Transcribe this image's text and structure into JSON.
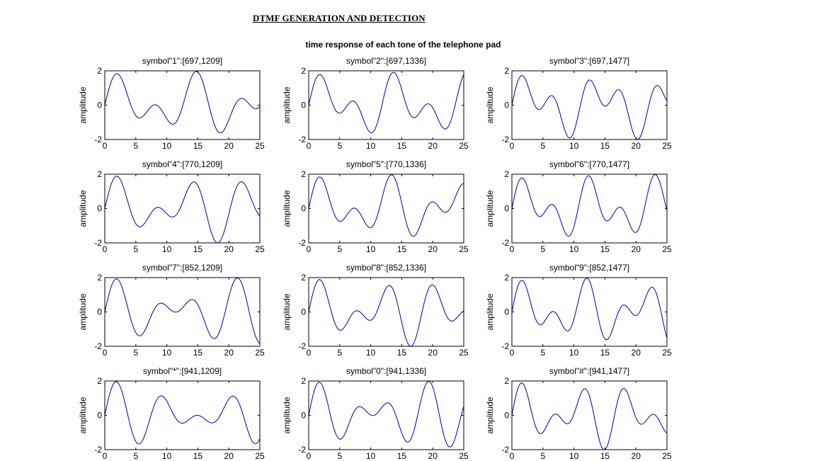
{
  "figure": {
    "title": "DTMF GENERATION AND DETECTION",
    "subtitle": "time response of each tone of the telephone pad"
  },
  "chart_data": [
    {
      "type": "line",
      "title": "symbol\"1\":[697,1209]",
      "ylabel": "amplitude",
      "xlabel": "",
      "f_low": 697,
      "f_high": 1209,
      "xlim": [
        0,
        25
      ],
      "ylim": [
        -2,
        2
      ],
      "xticks": [
        0,
        5,
        10,
        15,
        20,
        25
      ],
      "yticks": [
        -2,
        0,
        2
      ],
      "x": "sample index n = 0..25 (step 0.1)",
      "series": [
        {
          "formula": "sin(2*pi*697*n/8000)+sin(2*pi*1209*n/8000)",
          "color": "#0000a0"
        }
      ]
    },
    {
      "type": "line",
      "title": "symbol\"2\":[697,1336]",
      "ylabel": "amplitude",
      "xlabel": "",
      "f_low": 697,
      "f_high": 1336,
      "xlim": [
        0,
        25
      ],
      "ylim": [
        -2,
        2
      ],
      "xticks": [
        0,
        5,
        10,
        15,
        20,
        25
      ],
      "yticks": [
        -2,
        0,
        2
      ],
      "series": [
        {
          "color": "#0000a0"
        }
      ]
    },
    {
      "type": "line",
      "title": "symbol\"3\":[697,1477]",
      "ylabel": "amplitude",
      "xlabel": "",
      "f_low": 697,
      "f_high": 1477,
      "xlim": [
        0,
        25
      ],
      "ylim": [
        -2,
        2
      ],
      "xticks": [
        0,
        5,
        10,
        15,
        20,
        25
      ],
      "yticks": [
        -2,
        0,
        2
      ],
      "series": [
        {
          "color": "#0000a0"
        }
      ]
    },
    {
      "type": "line",
      "title": "symbol\"4\":[770,1209]",
      "ylabel": "amplitude",
      "xlabel": "",
      "f_low": 770,
      "f_high": 1209,
      "xlim": [
        0,
        25
      ],
      "ylim": [
        -2,
        2
      ],
      "xticks": [
        0,
        5,
        10,
        15,
        20,
        25
      ],
      "yticks": [
        -2,
        0,
        2
      ],
      "series": [
        {
          "color": "#0000a0"
        }
      ]
    },
    {
      "type": "line",
      "title": "symbol\"5\":[770,1336]",
      "ylabel": "amplitude",
      "xlabel": "",
      "f_low": 770,
      "f_high": 1336,
      "xlim": [
        0,
        25
      ],
      "ylim": [
        -2,
        2
      ],
      "xticks": [
        0,
        5,
        10,
        15,
        20,
        25
      ],
      "yticks": [
        -2,
        0,
        2
      ],
      "series": [
        {
          "color": "#0000a0"
        }
      ]
    },
    {
      "type": "line",
      "title": "symbol\"6\":[770,1477]",
      "ylabel": "amplitude",
      "xlabel": "",
      "f_low": 770,
      "f_high": 1477,
      "xlim": [
        0,
        25
      ],
      "ylim": [
        -2,
        2
      ],
      "xticks": [
        0,
        5,
        10,
        15,
        20,
        25
      ],
      "yticks": [
        -2,
        0,
        2
      ],
      "series": [
        {
          "color": "#0000a0"
        }
      ]
    },
    {
      "type": "line",
      "title": "symbol\"7\":[852,1209]",
      "ylabel": "amplitude",
      "xlabel": "",
      "f_low": 852,
      "f_high": 1209,
      "xlim": [
        0,
        25
      ],
      "ylim": [
        -2,
        2
      ],
      "xticks": [
        0,
        5,
        10,
        15,
        20,
        25
      ],
      "yticks": [
        -2,
        0,
        2
      ],
      "series": [
        {
          "color": "#0000a0"
        }
      ]
    },
    {
      "type": "line",
      "title": "symbol\"8\":[852,1336]",
      "ylabel": "amplitude",
      "xlabel": "",
      "f_low": 852,
      "f_high": 1336,
      "xlim": [
        0,
        25
      ],
      "ylim": [
        -2,
        2
      ],
      "xticks": [
        0,
        5,
        10,
        15,
        20,
        25
      ],
      "yticks": [
        -2,
        0,
        2
      ],
      "series": [
        {
          "color": "#0000a0"
        }
      ]
    },
    {
      "type": "line",
      "title": "symbol\"9\":[852,1477]",
      "ylabel": "amplitude",
      "xlabel": "",
      "f_low": 852,
      "f_high": 1477,
      "xlim": [
        0,
        25
      ],
      "ylim": [
        -2,
        2
      ],
      "xticks": [
        0,
        5,
        10,
        15,
        20,
        25
      ],
      "yticks": [
        -2,
        0,
        2
      ],
      "series": [
        {
          "color": "#0000a0"
        }
      ]
    },
    {
      "type": "line",
      "title": "symbol\"*\":[941,1209]",
      "ylabel": "amplitude",
      "xlabel": "",
      "f_low": 941,
      "f_high": 1209,
      "xlim": [
        0,
        25
      ],
      "ylim": [
        -2,
        2
      ],
      "xticks": [
        0,
        5,
        10,
        15,
        20,
        25
      ],
      "yticks": [
        -2,
        0,
        2
      ],
      "series": [
        {
          "color": "#0000a0"
        }
      ]
    },
    {
      "type": "line",
      "title": "symbol\"0\":[941,1336]",
      "ylabel": "amplitude",
      "xlabel": "",
      "f_low": 941,
      "f_high": 1336,
      "xlim": [
        0,
        25
      ],
      "ylim": [
        -2,
        2
      ],
      "xticks": [
        0,
        5,
        10,
        15,
        20,
        25
      ],
      "yticks": [
        -2,
        0,
        2
      ],
      "series": [
        {
          "color": "#0000a0"
        }
      ]
    },
    {
      "type": "line",
      "title": "symbol\"#\":[941,1477]",
      "ylabel": "amplitude",
      "xlabel": "",
      "f_low": 941,
      "f_high": 1477,
      "xlim": [
        0,
        25
      ],
      "ylim": [
        -2,
        2
      ],
      "xticks": [
        0,
        5,
        10,
        15,
        20,
        25
      ],
      "yticks": [
        -2,
        0,
        2
      ],
      "series": [
        {
          "color": "#0000a0"
        }
      ]
    }
  ]
}
